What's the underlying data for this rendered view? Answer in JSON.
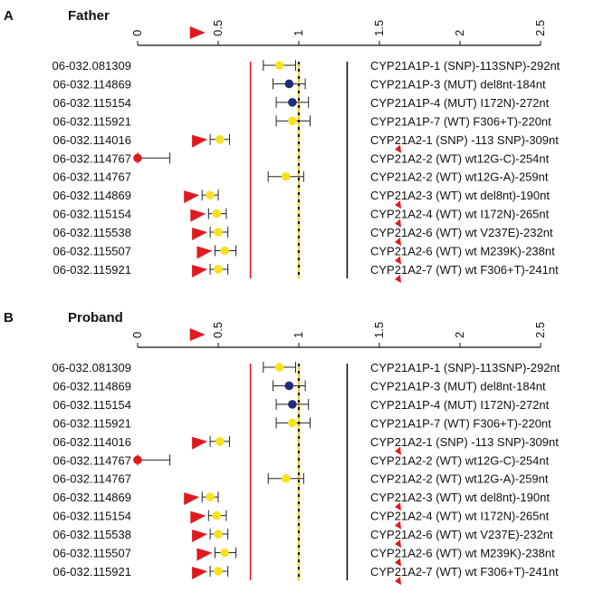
{
  "chart_data": [
    {
      "type": "scatter",
      "panel_letter": "A",
      "title": "Father",
      "xlim": [
        0,
        2.5
      ],
      "xticks": [
        "0",
        "0.5",
        "1",
        "1.5",
        "2",
        "2.5"
      ],
      "reference_lines": {
        "red": 0.7,
        "dashed_yellow": 1.0,
        "black": 1.3
      },
      "rows": [
        {
          "sample": "06-032.081309",
          "probe": "CYP21A1P-1 (SNP)-113SNP)-292nt",
          "value": 0.88,
          "low": 0.78,
          "high": 0.98,
          "color": "yellow",
          "arrow": false,
          "probe_marker": false
        },
        {
          "sample": "06-032.114869",
          "probe": "CYP21A1P-3 (MUT) del8nt-184nt",
          "value": 0.94,
          "low": 0.84,
          "high": 1.04,
          "color": "navy",
          "arrow": false,
          "probe_marker": false
        },
        {
          "sample": "06-032.115154",
          "probe": "CYP21A1P-4 (MUT) I172N)-272nt",
          "value": 0.96,
          "low": 0.86,
          "high": 1.06,
          "color": "navy",
          "arrow": false,
          "probe_marker": false
        },
        {
          "sample": "06-032.115921",
          "probe": "CYP21A1P-7 (WT) F306+T)-220nt",
          "value": 0.96,
          "low": 0.86,
          "high": 1.07,
          "color": "yellow",
          "arrow": false,
          "probe_marker": false
        },
        {
          "sample": "06-032.114016",
          "probe": "CYP21A2-1 (SNP) -113 SNP)-309nt",
          "value": 0.51,
          "low": 0.45,
          "high": 0.57,
          "color": "yellow",
          "arrow": true,
          "probe_marker": true
        },
        {
          "sample": "06-032.114767",
          "probe": "CYP21A2-2 (WT) wt12G-C)-254nt",
          "value": 0.0,
          "low": 0.0,
          "high": 0.2,
          "color": "red",
          "arrow": false,
          "probe_marker": false
        },
        {
          "sample": "06-032.114767",
          "probe": "CYP21A2-2 (WT) wt12G-A)-259nt",
          "value": 0.92,
          "low": 0.81,
          "high": 1.03,
          "color": "yellow",
          "arrow": false,
          "probe_marker": false
        },
        {
          "sample": "06-032.114869",
          "probe": "CYP21A2-3 (WT) wt del8nt)-190nt",
          "value": 0.45,
          "low": 0.4,
          "high": 0.5,
          "color": "yellow",
          "arrow": true,
          "probe_marker": true
        },
        {
          "sample": "06-032.115154",
          "probe": "CYP21A2-4 (WT) wt I172N)-265nt",
          "value": 0.49,
          "low": 0.44,
          "high": 0.55,
          "color": "yellow",
          "arrow": true,
          "probe_marker": true
        },
        {
          "sample": "06-032.115538",
          "probe": "CYP21A2-6 (WT) wt V237E)-232nt",
          "value": 0.5,
          "low": 0.45,
          "high": 0.56,
          "color": "yellow",
          "arrow": true,
          "probe_marker": true
        },
        {
          "sample": "06-032.115507",
          "probe": "CYP21A2-6 (WT) wt M239K)-238nt",
          "value": 0.54,
          "low": 0.48,
          "high": 0.61,
          "color": "yellow",
          "arrow": true,
          "probe_marker": true
        },
        {
          "sample": "06-032.115921",
          "probe": "CYP21A2-7 (WT) wt F306+T)-241nt",
          "value": 0.5,
          "low": 0.45,
          "high": 0.56,
          "color": "yellow",
          "arrow": true,
          "probe_marker": true
        }
      ]
    },
    {
      "type": "scatter",
      "panel_letter": "B",
      "title": "Proband",
      "xlim": [
        0,
        2.5
      ],
      "xticks": [
        "0",
        "0.5",
        "1",
        "1.5",
        "2",
        "2.5"
      ],
      "reference_lines": {
        "red": 0.7,
        "dashed_yellow": 1.0,
        "black": 1.3
      },
      "rows": [
        {
          "sample": "06-032.081309",
          "probe": "CYP21A1P-1 (SNP)-113SNP)-292nt",
          "value": 0.88,
          "low": 0.78,
          "high": 0.98,
          "color": "yellow",
          "arrow": false,
          "probe_marker": false
        },
        {
          "sample": "06-032.114869",
          "probe": "CYP21A1P-3 (MUT) del8nt-184nt",
          "value": 0.94,
          "low": 0.84,
          "high": 1.04,
          "color": "navy",
          "arrow": false,
          "probe_marker": false
        },
        {
          "sample": "06-032.115154",
          "probe": "CYP21A1P-4 (MUT) I172N)-272nt",
          "value": 0.96,
          "low": 0.86,
          "high": 1.06,
          "color": "navy",
          "arrow": false,
          "probe_marker": false
        },
        {
          "sample": "06-032.115921",
          "probe": "CYP21A1P-7 (WT) F306+T)-220nt",
          "value": 0.96,
          "low": 0.86,
          "high": 1.07,
          "color": "yellow",
          "arrow": false,
          "probe_marker": false
        },
        {
          "sample": "06-032.114016",
          "probe": "CYP21A2-1 (SNP) -113 SNP)-309nt",
          "value": 0.51,
          "low": 0.45,
          "high": 0.57,
          "color": "yellow",
          "arrow": true,
          "probe_marker": true
        },
        {
          "sample": "06-032.114767",
          "probe": "CYP21A2-2 (WT) wt12G-C)-254nt",
          "value": 0.0,
          "low": 0.0,
          "high": 0.2,
          "color": "red",
          "arrow": false,
          "probe_marker": false
        },
        {
          "sample": "06-032.114767",
          "probe": "CYP21A2-2 (WT) wt12G-A)-259nt",
          "value": 0.92,
          "low": 0.81,
          "high": 1.03,
          "color": "yellow",
          "arrow": false,
          "probe_marker": false
        },
        {
          "sample": "06-032.114869",
          "probe": "CYP21A2-3 (WT) wt del8nt)-190nt",
          "value": 0.45,
          "low": 0.4,
          "high": 0.5,
          "color": "yellow",
          "arrow": true,
          "probe_marker": true
        },
        {
          "sample": "06-032.115154",
          "probe": "CYP21A2-4 (WT) wt I172N)-265nt",
          "value": 0.49,
          "low": 0.44,
          "high": 0.55,
          "color": "yellow",
          "arrow": true,
          "probe_marker": true
        },
        {
          "sample": "06-032.115538",
          "probe": "CYP21A2-6 (WT) wt V237E)-232nt",
          "value": 0.5,
          "low": 0.45,
          "high": 0.56,
          "color": "yellow",
          "arrow": true,
          "probe_marker": true
        },
        {
          "sample": "06-032.115507",
          "probe": "CYP21A2-6 (WT) wt M239K)-238nt",
          "value": 0.54,
          "low": 0.48,
          "high": 0.61,
          "color": "yellow",
          "arrow": true,
          "probe_marker": true
        },
        {
          "sample": "06-032.115921",
          "probe": "CYP21A2-7 (WT) wt F306+T)-241nt",
          "value": 0.5,
          "low": 0.45,
          "high": 0.56,
          "color": "yellow",
          "arrow": true,
          "probe_marker": true
        }
      ]
    }
  ],
  "colors": {
    "yellow": "#f7e11f",
    "navy": "#1f2d7a",
    "red": "#e0191f",
    "arrow": "#e0191f",
    "red_line": "#e0191f",
    "dashed_line": "#f2d21b",
    "black_line": "#111111",
    "error_bar": "#222222"
  }
}
